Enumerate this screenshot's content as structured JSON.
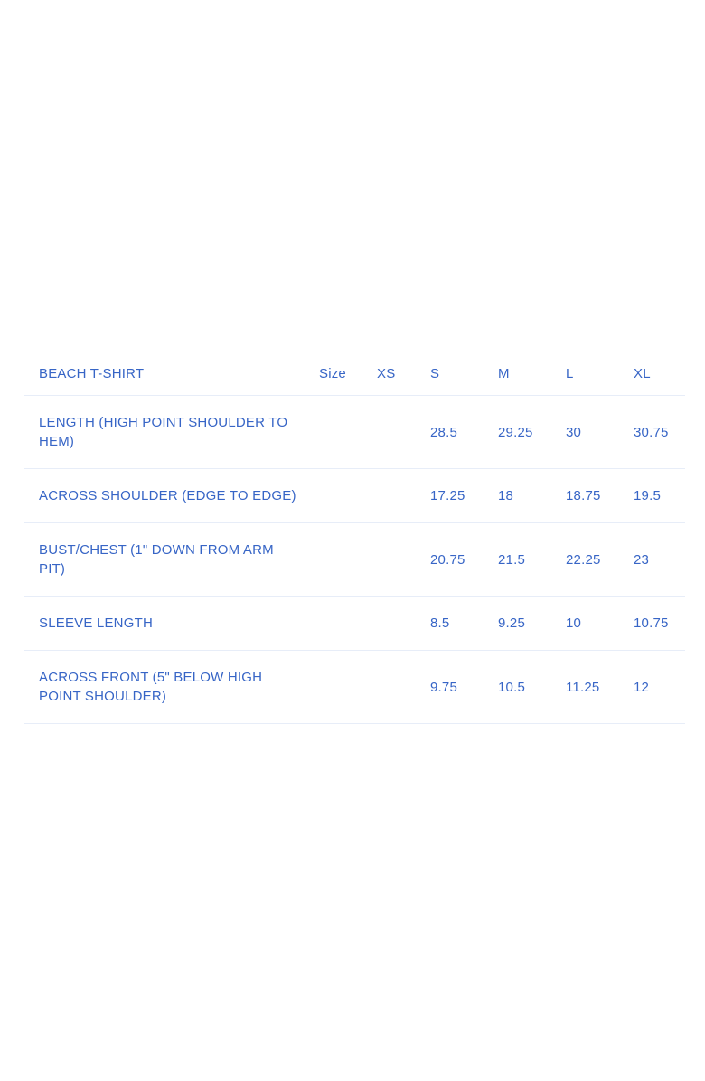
{
  "size_chart": {
    "product_name": "BEACH T-SHIRT",
    "size_column_label": "Size",
    "size_headers": [
      "XS",
      "S",
      "M",
      "L",
      "XL"
    ],
    "rows": [
      {
        "label": "LENGTH (HIGH POINT SHOULDER TO HEM)",
        "values": [
          "",
          "28.5",
          "29.25",
          "30",
          "30.75"
        ]
      },
      {
        "label": "ACROSS SHOULDER (EDGE TO EDGE)",
        "values": [
          "",
          "17.25",
          "18",
          "18.75",
          "19.5"
        ]
      },
      {
        "label": "BUST/CHEST (1\" DOWN FROM ARM PIT)",
        "values": [
          "",
          "20.75",
          "21.5",
          "22.25",
          "23"
        ]
      },
      {
        "label": "SLEEVE LENGTH",
        "values": [
          "",
          "8.5",
          "9.25",
          "10",
          "10.75"
        ]
      },
      {
        "label": "ACROSS FRONT (5\" BELOW HIGH POINT SHOULDER)",
        "values": [
          "",
          "9.75",
          "10.5",
          "11.25",
          "12"
        ]
      }
    ],
    "colors": {
      "text_blue": "#3765C6",
      "divider": "#E7EDF8",
      "background": "#FFFFFF"
    }
  }
}
